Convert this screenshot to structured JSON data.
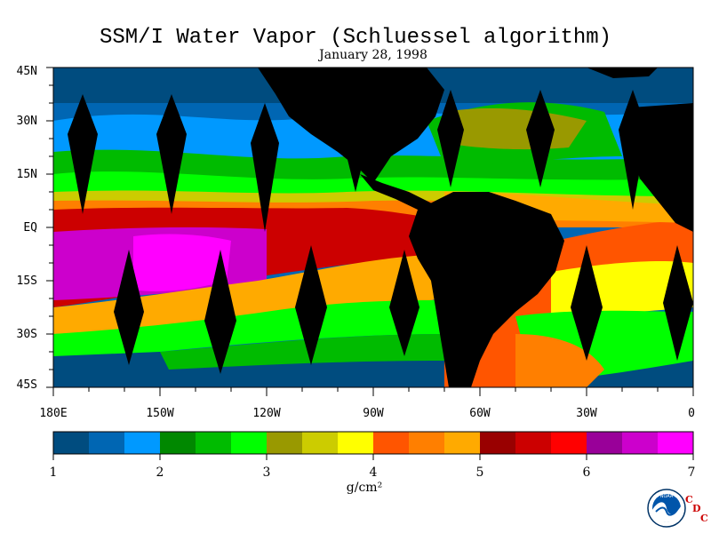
{
  "title": "SSM/I Water Vapor (Schluessel algorithm)",
  "date": "January 28, 1998",
  "lat_labels": [
    "45N",
    "30N",
    "15N",
    "EQ",
    "15S",
    "30S",
    "45S"
  ],
  "lon_labels": [
    "180E",
    "150W",
    "120W",
    "90W",
    "60W",
    "30W",
    "0"
  ],
  "colorbar": {
    "ticks": [
      "1",
      "2",
      "3",
      "4",
      "5",
      "6",
      "7"
    ],
    "units": "g/cm²",
    "colors": [
      "#004c7f",
      "#0066b3",
      "#0099ff",
      "#008800",
      "#00bb00",
      "#00ff00",
      "#999900",
      "#cccc00",
      "#ffff00",
      "#ff5500",
      "#ff7f00",
      "#ffaa00",
      "#990000",
      "#cc0000",
      "#ff0000",
      "#990099",
      "#cc00cc",
      "#ff00ff"
    ]
  },
  "logo": {
    "org": "NOAA",
    "cdc": [
      "C",
      "D",
      "C"
    ]
  },
  "colors": {
    "land": "#000000",
    "swath_gap": "#000000"
  }
}
